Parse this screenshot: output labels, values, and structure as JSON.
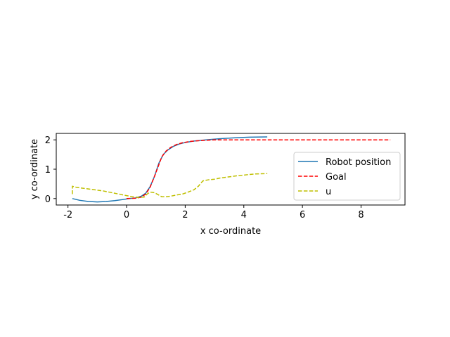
{
  "chart_data": {
    "type": "line",
    "title": "",
    "xlabel": "x co-ordinate",
    "ylabel": "y co-ordinate",
    "xlim": [
      -2.4,
      9.5
    ],
    "ylim": [
      -0.22,
      2.22
    ],
    "x_ticks": [
      -2,
      0,
      2,
      4,
      6,
      8
    ],
    "y_ticks": [
      0,
      1,
      2
    ],
    "grid": false,
    "legend_position": "right",
    "series": [
      {
        "name": "Robot position",
        "color": "#1f77b4",
        "dash": "solid",
        "points": [
          [
            -1.85,
            0.0
          ],
          [
            -1.6,
            -0.06
          ],
          [
            -1.3,
            -0.1
          ],
          [
            -1.0,
            -0.115
          ],
          [
            -0.7,
            -0.1
          ],
          [
            -0.4,
            -0.07
          ],
          [
            -0.1,
            -0.03
          ],
          [
            0.1,
            0.0
          ],
          [
            0.3,
            0.02
          ],
          [
            0.5,
            0.08
          ],
          [
            0.65,
            0.18
          ],
          [
            0.8,
            0.4
          ],
          [
            0.95,
            0.75
          ],
          [
            1.1,
            1.2
          ],
          [
            1.25,
            1.5
          ],
          [
            1.4,
            1.65
          ],
          [
            1.6,
            1.78
          ],
          [
            1.8,
            1.86
          ],
          [
            2.0,
            1.91
          ],
          [
            2.3,
            1.96
          ],
          [
            2.7,
            2.0
          ],
          [
            3.2,
            2.04
          ],
          [
            3.7,
            2.07
          ],
          [
            4.2,
            2.09
          ],
          [
            4.8,
            2.1
          ]
        ]
      },
      {
        "name": "Goal",
        "color": "#ff0000",
        "dash": "dashed",
        "points": [
          [
            0.0,
            0.0
          ],
          [
            0.3,
            0.01
          ],
          [
            0.5,
            0.05
          ],
          [
            0.65,
            0.15
          ],
          [
            0.8,
            0.38
          ],
          [
            0.95,
            0.75
          ],
          [
            1.1,
            1.15
          ],
          [
            1.2,
            1.42
          ],
          [
            1.35,
            1.62
          ],
          [
            1.5,
            1.74
          ],
          [
            1.7,
            1.84
          ],
          [
            1.9,
            1.9
          ],
          [
            2.2,
            1.95
          ],
          [
            2.6,
            1.98
          ],
          [
            3.0,
            2.0
          ],
          [
            4.0,
            2.0
          ],
          [
            5.0,
            2.0
          ],
          [
            6.0,
            2.0
          ],
          [
            7.0,
            2.0
          ],
          [
            8.0,
            2.0
          ],
          [
            9.0,
            2.0
          ]
        ]
      },
      {
        "name": "u",
        "color": "#bfbf00",
        "dash": "dashed",
        "points": [
          [
            -1.85,
            0.15
          ],
          [
            -1.85,
            0.42
          ],
          [
            -1.7,
            0.38
          ],
          [
            -1.4,
            0.34
          ],
          [
            -1.1,
            0.3
          ],
          [
            -0.8,
            0.26
          ],
          [
            -0.5,
            0.2
          ],
          [
            -0.2,
            0.14
          ],
          [
            0.0,
            0.1
          ],
          [
            0.2,
            0.06
          ],
          [
            0.4,
            0.04
          ],
          [
            0.6,
            0.05
          ],
          [
            0.7,
            0.15
          ],
          [
            0.8,
            0.22
          ],
          [
            0.95,
            0.2
          ],
          [
            1.1,
            0.12
          ],
          [
            1.2,
            0.06
          ],
          [
            1.35,
            0.06
          ],
          [
            1.5,
            0.08
          ],
          [
            1.7,
            0.12
          ],
          [
            1.9,
            0.15
          ],
          [
            2.1,
            0.22
          ],
          [
            2.3,
            0.3
          ],
          [
            2.45,
            0.42
          ],
          [
            2.6,
            0.6
          ],
          [
            2.8,
            0.64
          ],
          [
            3.0,
            0.66
          ],
          [
            3.2,
            0.7
          ],
          [
            3.5,
            0.74
          ],
          [
            3.8,
            0.78
          ],
          [
            4.1,
            0.81
          ],
          [
            4.4,
            0.84
          ],
          [
            4.8,
            0.85
          ]
        ]
      }
    ]
  }
}
